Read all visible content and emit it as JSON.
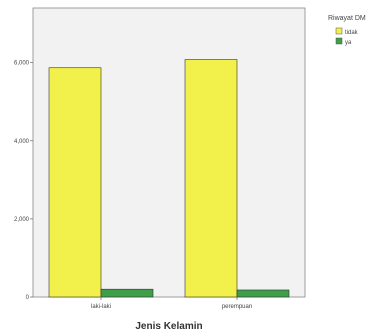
{
  "chart_data": {
    "type": "bar",
    "categories": [
      "laki-laki",
      "perempuan"
    ],
    "series": [
      {
        "name": "tidak",
        "color": "#f2f04a",
        "values": [
          5870,
          6080
        ]
      },
      {
        "name": "ya",
        "color": "#3e9e4a",
        "values": [
          200,
          180
        ]
      }
    ],
    "y_ticks": [
      0,
      2000,
      4000,
      6000
    ],
    "y_tick_labels": [
      "0",
      "2,000",
      "4,000",
      "6,000"
    ],
    "ylim": [
      0,
      7400
    ],
    "xlabel": "Jenis Kelamin",
    "ylabel": "",
    "legend": {
      "title": "Riwayat DM",
      "placement": "right"
    },
    "grid": false,
    "plot_background": "#f2f2f2"
  }
}
